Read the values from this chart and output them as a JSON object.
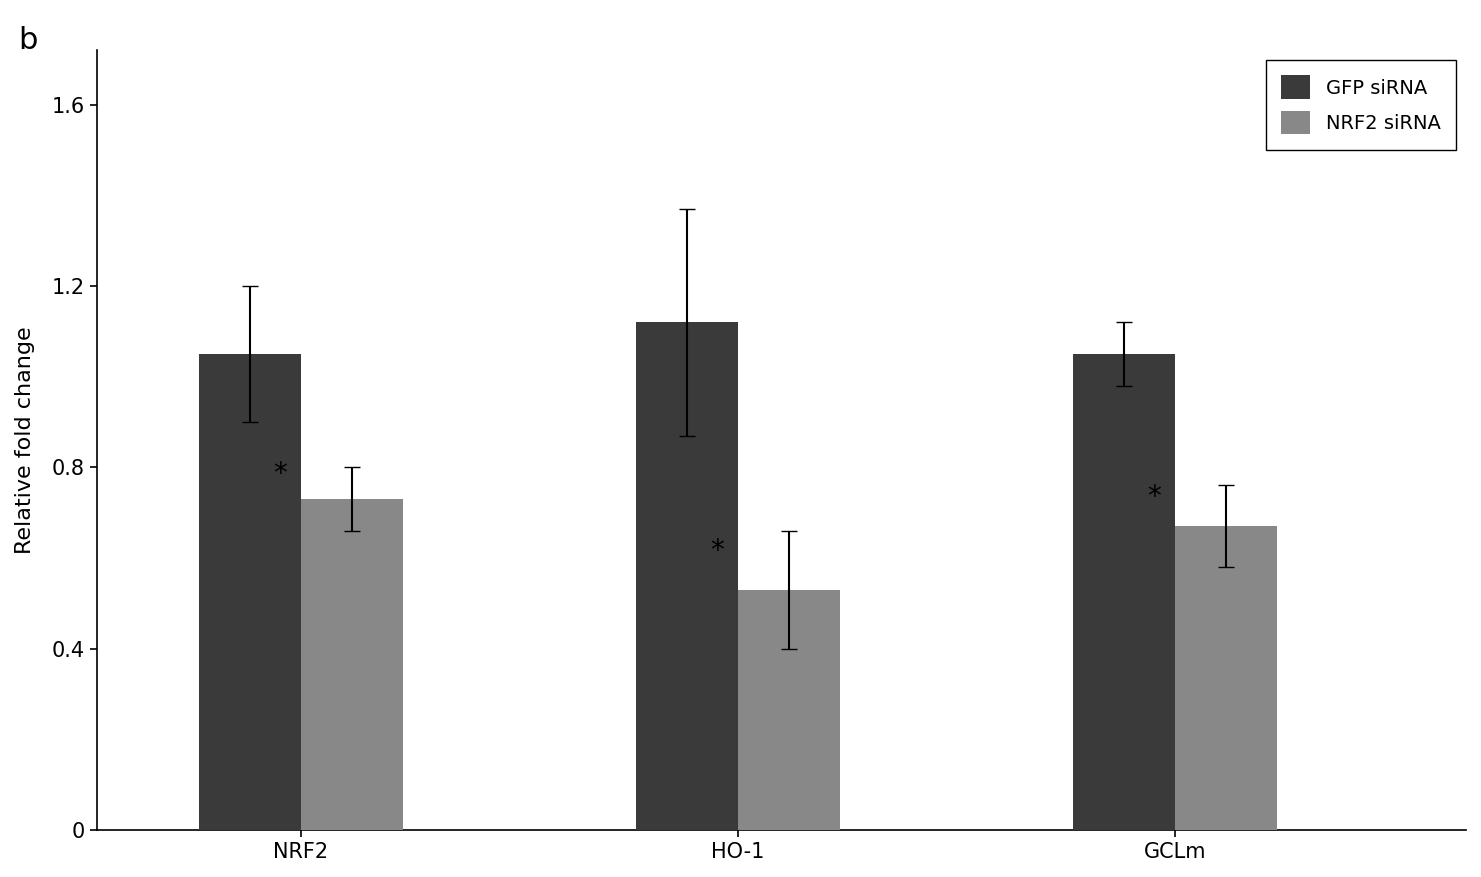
{
  "categories": [
    "NRF2",
    "HO-1",
    "GCLm"
  ],
  "gfp_values": [
    1.05,
    1.12,
    1.05
  ],
  "nrf2_values": [
    0.73,
    0.53,
    0.67
  ],
  "gfp_errors": [
    0.15,
    0.25,
    0.07
  ],
  "nrf2_errors": [
    0.07,
    0.13,
    0.09
  ],
  "gfp_color": "#3a3a3a",
  "nrf2_color": "#888888",
  "ylabel": "Relative fold change",
  "ylim": [
    0,
    1.72
  ],
  "yticks": [
    0,
    0.4,
    0.8,
    1.2,
    1.6
  ],
  "legend_labels": [
    "GFP siRNA",
    "NRF2 siRNA"
  ],
  "panel_label": "b",
  "background_color": "#ffffff",
  "bar_width": 0.35,
  "asterisk_fontsize": 20,
  "label_fontsize": 16,
  "tick_fontsize": 15,
  "legend_fontsize": 14,
  "title_fontsize": 22
}
